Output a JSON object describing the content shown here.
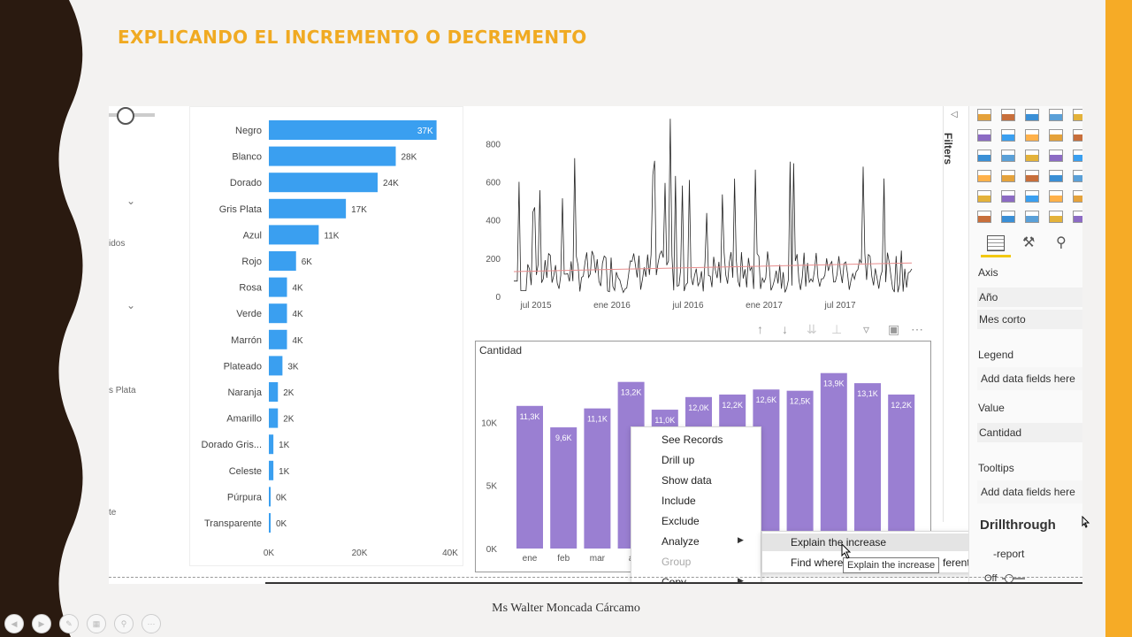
{
  "slide": {
    "title": "EXPLICANDO EL INCREMENTO O DECREMENTO",
    "credit": "Ms Walter Moncada Cárcamo"
  },
  "left_panel": {
    "fragments": [
      "idos",
      "s Plata",
      "te"
    ]
  },
  "bar_chart": {
    "chart_data": {
      "type": "bar",
      "orientation": "horizontal",
      "categories": [
        "Negro",
        "Blanco",
        "Dorado",
        "Gris Plata",
        "Azul",
        "Rojo",
        "Rosa",
        "Verde",
        "Marrón",
        "Plateado",
        "Naranja",
        "Amarillo",
        "Dorado Gris...",
        "Celeste",
        "Púrpura",
        "Transparente"
      ],
      "values": [
        37000,
        28000,
        24000,
        17000,
        11000,
        6000,
        4000,
        4000,
        4000,
        3000,
        2000,
        2000,
        1000,
        1000,
        0,
        0
      ],
      "data_labels": [
        "37K",
        "28K",
        "24K",
        "17K",
        "11K",
        "6K",
        "4K",
        "4K",
        "4K",
        "3K",
        "2K",
        "2K",
        "1K",
        "1K",
        "0K",
        "0K"
      ],
      "x_ticks": [
        "0K",
        "20K",
        "40K"
      ],
      "xlim": [
        0,
        40000
      ],
      "color": "#3a9ff0"
    }
  },
  "line_chart": {
    "chart_data": {
      "type": "line",
      "y_ticks": [
        "0",
        "200",
        "400",
        "600",
        "800"
      ],
      "ylim": [
        0,
        950
      ],
      "x_ticks": [
        "jul 2015",
        "ene 2016",
        "jul 2016",
        "ene 2017",
        "jul 2017"
      ],
      "color": "#252525",
      "trend_color": "#e88d8d"
    }
  },
  "column_chart": {
    "title": "Cantidad",
    "chart_data": {
      "type": "bar",
      "categories": [
        "ene",
        "feb",
        "mar",
        "a",
        "",
        "",
        "",
        "",
        "",
        "",
        "",
        ""
      ],
      "values": [
        11300,
        9600,
        11100,
        13200,
        11000,
        12000,
        12200,
        12600,
        12500,
        13900,
        13100,
        12200
      ],
      "data_labels": [
        "11,3K",
        "9,6K",
        "11,1K",
        "13,2K",
        "11,0K",
        "12,0K",
        "12,2K",
        "12,6K",
        "12,5K",
        "13,9K",
        "13,1K",
        "12,2K"
      ],
      "y_ticks": [
        "0K",
        "5K",
        "10K"
      ],
      "ylim": [
        0,
        15000
      ],
      "color": "#9a7fd2"
    }
  },
  "context_menu": {
    "items": [
      "See Records",
      "Drill up",
      "Show data",
      "Include",
      "Exclude",
      "Analyze",
      "Group",
      "Copy"
    ],
    "disabled": [
      "Group"
    ]
  },
  "submenu": {
    "items": [
      "Explain the increase",
      "Find where"
    ],
    "hidden_suffix": "ferent"
  },
  "tooltip": "Explain the increase",
  "filters_tab": "Filters",
  "fields_pane": {
    "axis_label": "Axis",
    "axis_fields": [
      "Año",
      "Mes corto"
    ],
    "legend_label": "Legend",
    "legend_placeholder": "Add data fields here",
    "value_label": "Value",
    "value_field": "Cantidad",
    "tooltips_label": "Tooltips",
    "tooltips_placeholder": "Add data fields here",
    "drillthrough_label": "Drillthrough",
    "cross_report": "-report",
    "toggle_off": "Off"
  }
}
